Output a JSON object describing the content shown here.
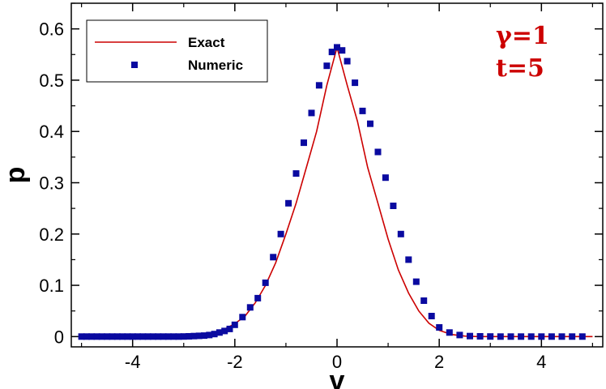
{
  "chart_data": {
    "type": "line",
    "xlabel": "v",
    "ylabel": "p",
    "xlim": [
      -5.2,
      5.2
    ],
    "ylim": [
      -0.02,
      0.65
    ],
    "xticks": [
      -4,
      -2,
      0,
      2,
      4
    ],
    "xtick_labels": [
      "-4",
      "-2",
      "0",
      "2",
      "4"
    ],
    "yticks": [
      0,
      0.1,
      0.2,
      0.3,
      0.4,
      0.5,
      0.6
    ],
    "ytick_labels": [
      "0",
      "0.1",
      "0.2",
      "0.3",
      "0.4",
      "0.5",
      "0.6"
    ],
    "grid": false,
    "legend_position": "top-left",
    "annotations": [
      "γ=1",
      "t=5"
    ],
    "colors": {
      "exact": "#cc0000",
      "numeric": "#0a0aa0",
      "annotation": "#cc0000"
    },
    "series": [
      {
        "name": "Exact",
        "style": "line",
        "x": [
          -5,
          -4.5,
          -4,
          -3.5,
          -3,
          -2.75,
          -2.5,
          -2.25,
          -2,
          -1.8,
          -1.6,
          -1.4,
          -1.2,
          -1,
          -0.8,
          -0.6,
          -0.4,
          -0.2,
          0,
          0.2,
          0.4,
          0.6,
          0.8,
          1,
          1.2,
          1.4,
          1.6,
          1.8,
          2,
          2.25,
          2.5,
          2.75,
          3,
          3.5,
          4,
          4.5,
          5
        ],
        "y": [
          0,
          0,
          0,
          0,
          0.001,
          0.002,
          0.005,
          0.012,
          0.025,
          0.04,
          0.066,
          0.1,
          0.144,
          0.2,
          0.26,
          0.33,
          0.4,
          0.49,
          0.564,
          0.49,
          0.42,
          0.33,
          0.26,
          0.19,
          0.13,
          0.085,
          0.05,
          0.026,
          0.012,
          0.004,
          0.001,
          0,
          0,
          0,
          0,
          0,
          0
        ]
      },
      {
        "name": "Numeric",
        "style": "marker",
        "x": [
          -5,
          -4.9,
          -4.8,
          -4.7,
          -4.6,
          -4.5,
          -4.4,
          -4.3,
          -4.2,
          -4.1,
          -4.0,
          -3.9,
          -3.8,
          -3.7,
          -3.6,
          -3.5,
          -3.4,
          -3.3,
          -3.2,
          -3.1,
          -3.0,
          -2.9,
          -2.8,
          -2.7,
          -2.6,
          -2.5,
          -2.4,
          -2.3,
          -2.2,
          -2.1,
          -2.0,
          -1.85,
          -1.7,
          -1.55,
          -1.4,
          -1.25,
          -1.1,
          -0.95,
          -0.8,
          -0.65,
          -0.5,
          -0.35,
          -0.2,
          -0.1,
          0,
          0.1,
          0.2,
          0.35,
          0.5,
          0.65,
          0.8,
          0.95,
          1.1,
          1.25,
          1.4,
          1.55,
          1.7,
          1.85,
          2.0,
          2.2,
          2.4,
          2.6,
          2.8,
          3.0,
          3.2,
          3.4,
          3.6,
          3.8,
          4.0,
          4.2,
          4.4,
          4.6,
          4.8
        ],
        "y": [
          0,
          0,
          0,
          0,
          0,
          0,
          0,
          0,
          0,
          0,
          0,
          0,
          0,
          0,
          0,
          0,
          0,
          0,
          0,
          0,
          0.0002,
          0.0005,
          0.001,
          0.0015,
          0.002,
          0.003,
          0.005,
          0.008,
          0.011,
          0.015,
          0.023,
          0.038,
          0.057,
          0.075,
          0.105,
          0.155,
          0.2,
          0.26,
          0.318,
          0.378,
          0.436,
          0.49,
          0.528,
          0.555,
          0.564,
          0.558,
          0.537,
          0.495,
          0.44,
          0.415,
          0.36,
          0.31,
          0.255,
          0.2,
          0.15,
          0.107,
          0.07,
          0.04,
          0.018,
          0.008,
          0.003,
          0.001,
          0.0005,
          0.0002,
          0,
          0,
          0,
          0,
          0,
          0,
          0,
          0,
          0
        ]
      }
    ]
  }
}
